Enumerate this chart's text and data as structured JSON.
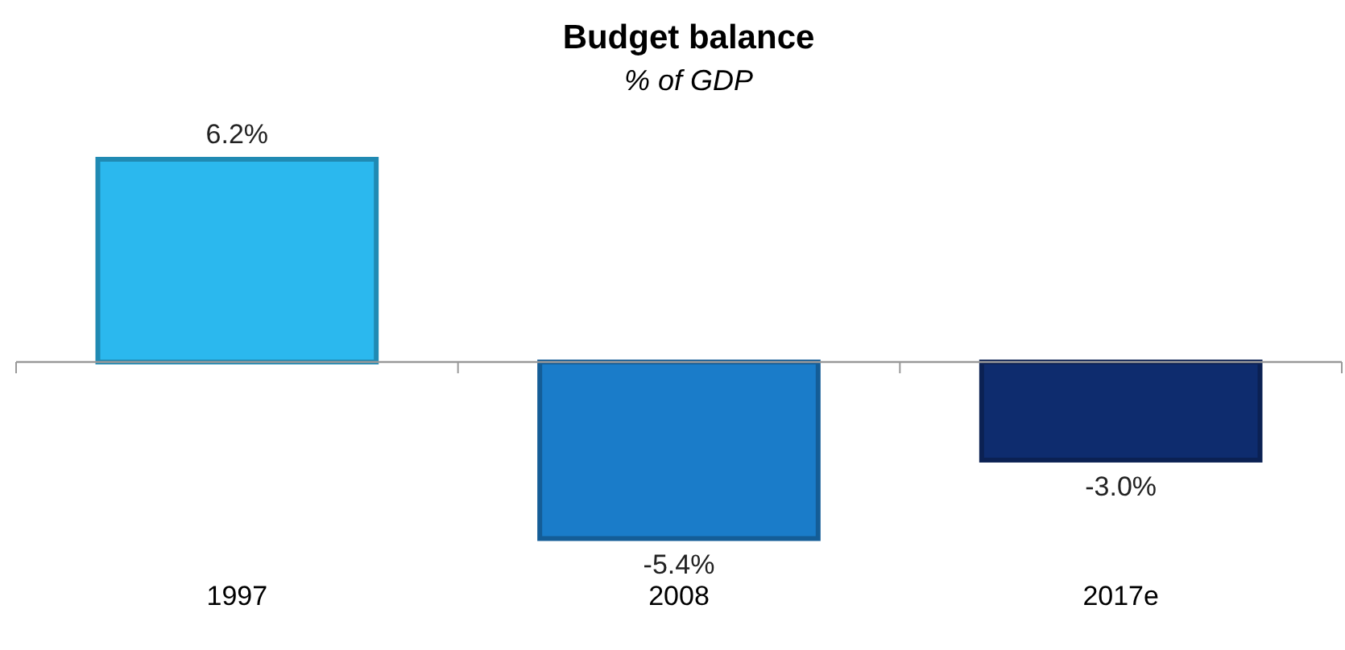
{
  "chart_data": {
    "type": "bar",
    "title": "Budget balance",
    "subtitle": "% of GDP",
    "categories": [
      "1997",
      "2008",
      "2017e"
    ],
    "values": [
      6.2,
      -5.4,
      -3.0
    ],
    "colors": [
      "#2bb8ee",
      "#1a7cc9",
      "#0e2c6e"
    ],
    "value_labels": [
      "6.2%",
      "-5.4%",
      "-3.0%"
    ]
  }
}
